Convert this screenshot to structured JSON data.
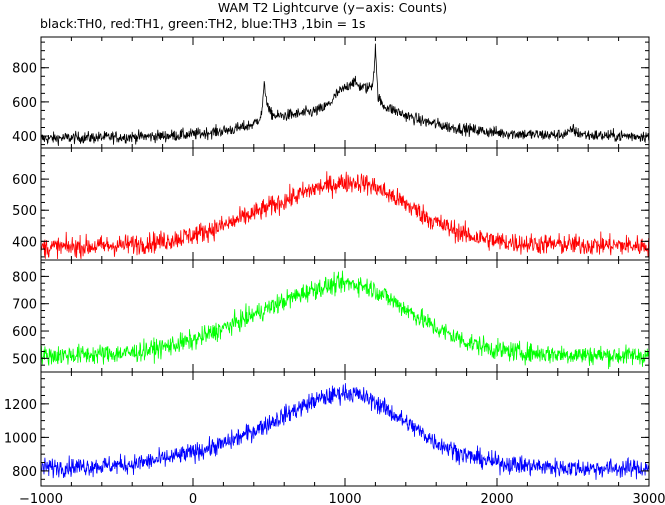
{
  "title": "WAM T2 Lightcurve (y−axis: Counts)",
  "subtitle": "black:TH0, red:TH1, green:TH2, blue:TH3 ,1bin = 1s",
  "chart_data": {
    "type": "line",
    "xlim": [
      -1000,
      3000
    ],
    "x_ticks": [
      -1000,
      0,
      1000,
      2000,
      3000
    ],
    "x_tick_labels": [
      "−1000",
      "0",
      "1000",
      "2000",
      "3000"
    ],
    "grid": false,
    "panels": [
      {
        "name": "TH0",
        "color": "#000000",
        "ylim": [
          330,
          980
        ],
        "y_ticks": [
          400,
          600,
          800
        ],
        "y_tick_labels": [
          "400",
          "600",
          "800"
        ],
        "x": [
          -1000,
          -800,
          -600,
          -400,
          -200,
          0,
          200,
          300,
          400,
          450,
          460,
          470,
          480,
          500,
          550,
          600,
          700,
          800,
          850,
          900,
          950,
          1000,
          1050,
          1100,
          1150,
          1180,
          1195,
          1200,
          1205,
          1210,
          1220,
          1250,
          1300,
          1400,
          1500,
          1600,
          1700,
          1800,
          1900,
          2000,
          2200,
          2400,
          2480,
          2500,
          2520,
          2600,
          2800,
          3000
        ],
        "y": [
          385,
          390,
          392,
          395,
          400,
          410,
          430,
          445,
          470,
          520,
          610,
          700,
          640,
          540,
          515,
          520,
          530,
          545,
          560,
          590,
          650,
          680,
          720,
          690,
          680,
          700,
          830,
          950,
          840,
          720,
          620,
          580,
          560,
          520,
          490,
          470,
          450,
          440,
          430,
          420,
          410,
          405,
          420,
          445,
          420,
          405,
          400,
          400
        ],
        "noise": 25
      },
      {
        "name": "TH1",
        "color": "#ff0000",
        "ylim": [
          340,
          700
        ],
        "y_ticks": [
          400,
          500,
          600
        ],
        "y_tick_labels": [
          "400",
          "500",
          "600"
        ],
        "x": [
          -1000,
          -800,
          -600,
          -400,
          -200,
          0,
          200,
          400,
          600,
          800,
          1000,
          1100,
          1200,
          1400,
          1600,
          1800,
          2000,
          2200,
          2400,
          2600,
          2800,
          3000
        ],
        "y": [
          380,
          382,
          385,
          390,
          400,
          420,
          450,
          490,
          530,
          570,
          590,
          590,
          575,
          520,
          460,
          420,
          400,
          392,
          390,
          388,
          387,
          385
        ],
        "noise": 24
      },
      {
        "name": "TH2",
        "color": "#00ff00",
        "ylim": [
          450,
          860
        ],
        "y_ticks": [
          500,
          600,
          700,
          800
        ],
        "y_tick_labels": [
          "500",
          "600",
          "700",
          "800"
        ],
        "x": [
          -1000,
          -800,
          -600,
          -400,
          -200,
          0,
          200,
          400,
          600,
          800,
          1000,
          1100,
          1200,
          1400,
          1600,
          1800,
          2000,
          2200,
          2400,
          2600,
          2800,
          3000
        ],
        "y": [
          510,
          512,
          515,
          520,
          540,
          565,
          610,
          660,
          710,
          755,
          775,
          770,
          750,
          680,
          610,
          560,
          530,
          520,
          515,
          512,
          510,
          510
        ],
        "noise": 26
      },
      {
        "name": "TH3",
        "color": "#0000ff",
        "ylim": [
          710,
          1390
        ],
        "y_ticks": [
          800,
          1000,
          1200
        ],
        "y_tick_labels": [
          "800",
          "1000",
          "1200"
        ],
        "x": [
          -1000,
          -800,
          -600,
          -400,
          -200,
          0,
          200,
          400,
          600,
          800,
          1000,
          1100,
          1200,
          1400,
          1600,
          1800,
          2000,
          2200,
          2400,
          2600,
          2800,
          3000
        ],
        "y": [
          820,
          825,
          830,
          840,
          870,
          910,
          960,
          1040,
          1130,
          1220,
          1270,
          1250,
          1210,
          1090,
          970,
          890,
          850,
          830,
          820,
          815,
          815,
          815
        ],
        "noise": 40
      }
    ]
  }
}
